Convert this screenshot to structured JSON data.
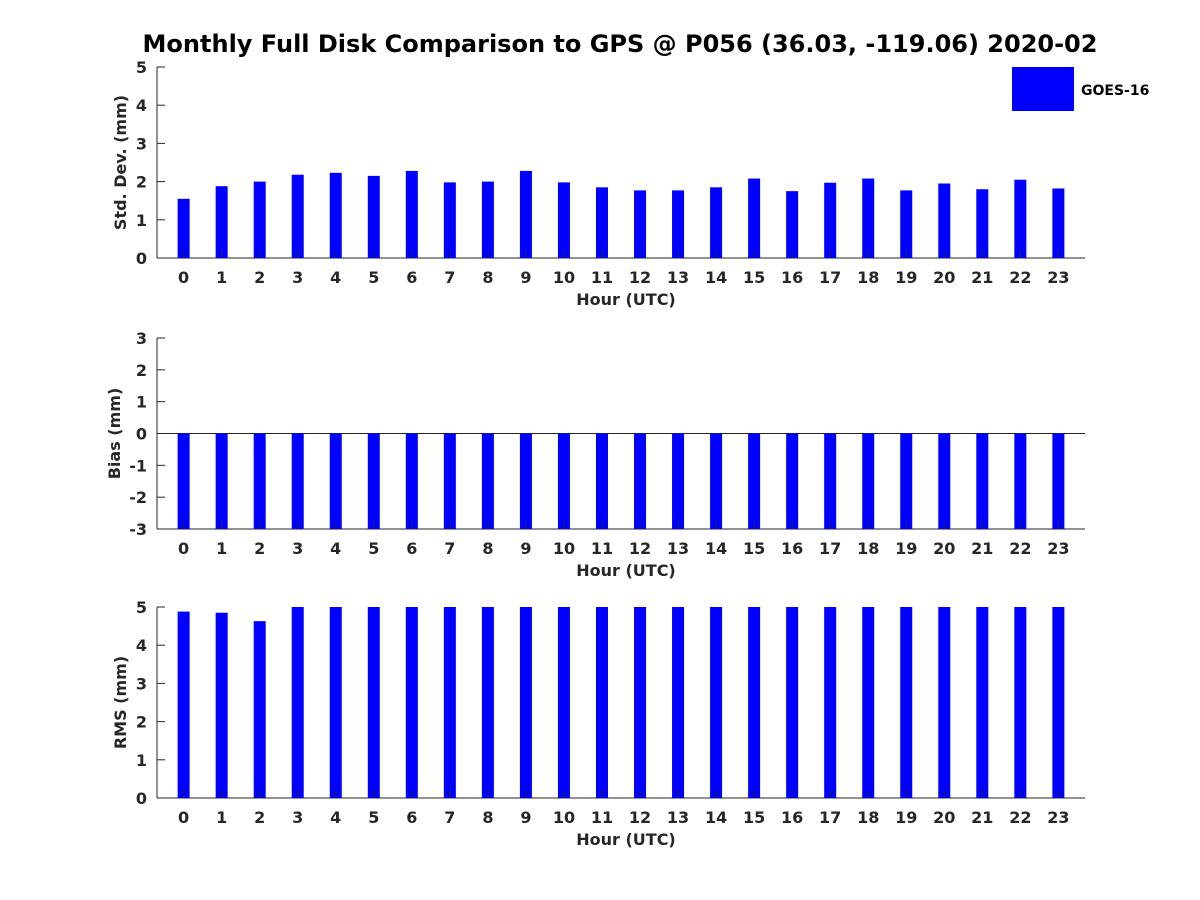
{
  "title": "Monthly Full Disk Comparison to GPS @ P056 (36.03, -119.06) 2020-02",
  "legend": {
    "label": "GOES-16",
    "color": "#0000ff",
    "placement": "top-right"
  },
  "chart_data": [
    {
      "type": "bar",
      "xlabel": "Hour (UTC)",
      "ylabel": "Std. Dev. (mm)",
      "ylim": [
        0,
        5
      ],
      "yticks": [
        0,
        1,
        2,
        3,
        4,
        5
      ],
      "categories": [
        "0",
        "1",
        "2",
        "3",
        "4",
        "5",
        "6",
        "7",
        "8",
        "9",
        "10",
        "11",
        "12",
        "13",
        "14",
        "15",
        "16",
        "17",
        "18",
        "19",
        "20",
        "21",
        "22",
        "23"
      ],
      "series": [
        {
          "name": "GOES-16",
          "color": "#0000ff",
          "values": [
            1.55,
            1.88,
            2.0,
            2.18,
            2.23,
            2.15,
            2.28,
            1.98,
            2.0,
            2.28,
            1.98,
            1.85,
            1.77,
            1.77,
            1.85,
            2.08,
            1.75,
            1.97,
            2.08,
            1.77,
            1.95,
            1.8,
            2.05,
            1.82
          ]
        }
      ]
    },
    {
      "type": "bar",
      "xlabel": "Hour (UTC)",
      "ylabel": "Bias (mm)",
      "ylim": [
        -3,
        3
      ],
      "yticks": [
        -3,
        -2,
        -1,
        0,
        1,
        2,
        3
      ],
      "categories": [
        "0",
        "1",
        "2",
        "3",
        "4",
        "5",
        "6",
        "7",
        "8",
        "9",
        "10",
        "11",
        "12",
        "13",
        "14",
        "15",
        "16",
        "17",
        "18",
        "19",
        "20",
        "21",
        "22",
        "23"
      ],
      "series": [
        {
          "name": "GOES-16",
          "color": "#0000ff",
          "values": [
            -3,
            -3,
            -3,
            -3,
            -3,
            -3,
            -3,
            -3,
            -3,
            -3,
            -3,
            -3,
            -3,
            -3,
            -3,
            -3,
            -3,
            -3,
            -3,
            -3,
            -3,
            -3,
            -3,
            -3
          ]
        }
      ]
    },
    {
      "type": "bar",
      "xlabel": "Hour (UTC)",
      "ylabel": "RMS (mm)",
      "ylim": [
        0,
        5
      ],
      "yticks": [
        0,
        1,
        2,
        3,
        4,
        5
      ],
      "categories": [
        "0",
        "1",
        "2",
        "3",
        "4",
        "5",
        "6",
        "7",
        "8",
        "9",
        "10",
        "11",
        "12",
        "13",
        "14",
        "15",
        "16",
        "17",
        "18",
        "19",
        "20",
        "21",
        "22",
        "23"
      ],
      "series": [
        {
          "name": "GOES-16",
          "color": "#0000ff",
          "values": [
            4.88,
            4.85,
            4.63,
            5,
            5,
            5,
            5,
            5,
            5,
            5,
            5,
            5,
            5,
            5,
            5,
            5,
            5,
            5,
            5,
            5,
            5,
            5,
            5,
            5
          ]
        }
      ]
    }
  ]
}
